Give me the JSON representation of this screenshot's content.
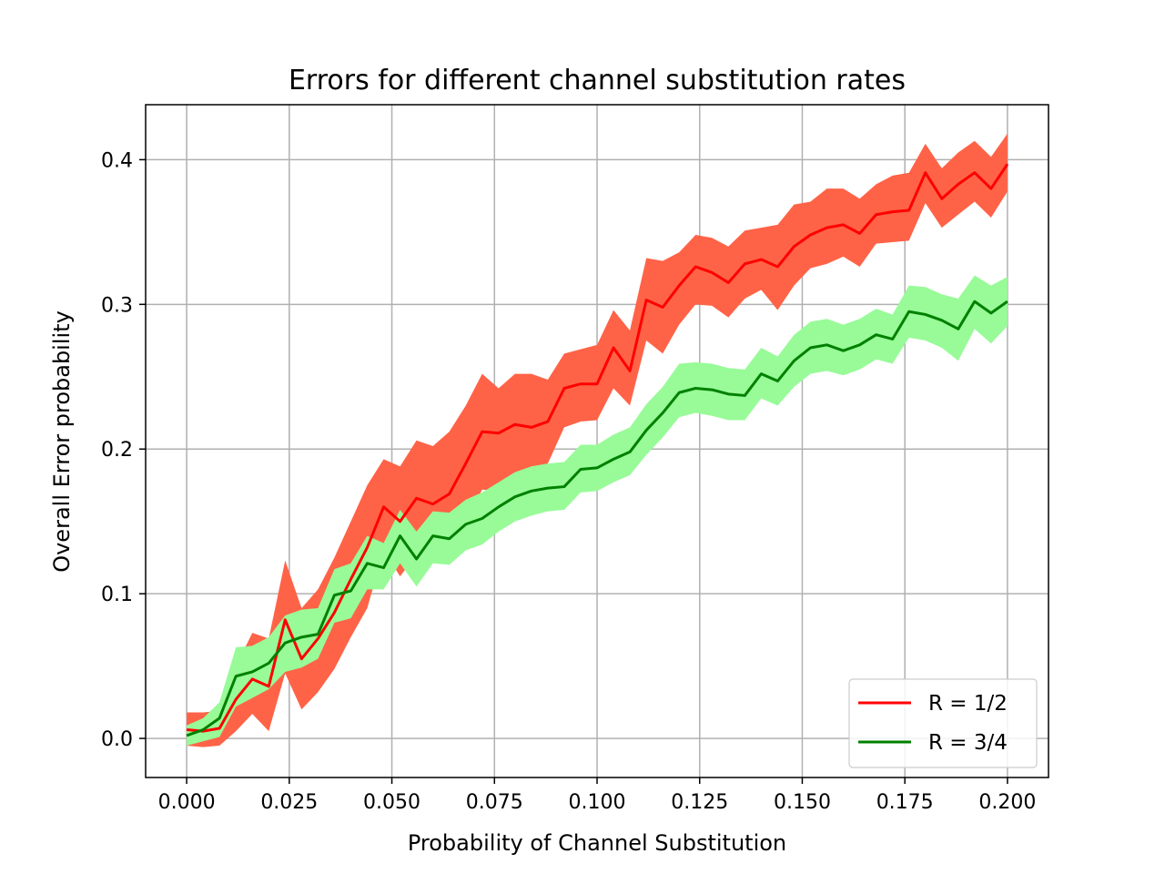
{
  "chart_data": {
    "type": "line",
    "title": "Errors for different channel substitution rates",
    "xlabel": "Probability of Channel Substitution",
    "ylabel": "Overall Error probability",
    "xlim": [
      -0.01,
      0.21
    ],
    "ylim": [
      -0.027,
      0.438
    ],
    "xticks": [
      0.0,
      0.025,
      0.05,
      0.075,
      0.1,
      0.125,
      0.15,
      0.175,
      0.2
    ],
    "xtick_labels": [
      "0.000",
      "0.025",
      "0.050",
      "0.075",
      "0.100",
      "0.125",
      "0.150",
      "0.175",
      "0.200"
    ],
    "yticks": [
      0.0,
      0.1,
      0.2,
      0.3,
      0.4
    ],
    "ytick_labels": [
      "0.0",
      "0.1",
      "0.2",
      "0.3",
      "0.4"
    ],
    "grid": true,
    "legend_position": "bottom-right",
    "x": [
      0.0,
      0.004,
      0.008,
      0.012,
      0.016,
      0.02,
      0.024,
      0.028,
      0.032,
      0.036,
      0.04,
      0.044,
      0.048,
      0.052,
      0.056,
      0.06,
      0.064,
      0.068,
      0.072,
      0.076,
      0.08,
      0.084,
      0.088,
      0.092,
      0.096,
      0.1,
      0.104,
      0.108,
      0.112,
      0.116,
      0.12,
      0.124,
      0.128,
      0.132,
      0.136,
      0.14,
      0.144,
      0.148,
      0.152,
      0.156,
      0.16,
      0.164,
      0.168,
      0.172,
      0.176,
      0.18,
      0.184,
      0.188,
      0.192,
      0.196,
      0.2
    ],
    "series": [
      {
        "name": "R = 1/2",
        "color": "#ff0000",
        "band_color": "#ff6347",
        "values": [
          0.006,
          0.005,
          0.007,
          0.027,
          0.041,
          0.036,
          0.082,
          0.055,
          0.069,
          0.087,
          0.11,
          0.132,
          0.16,
          0.15,
          0.166,
          0.162,
          0.169,
          0.19,
          0.212,
          0.211,
          0.217,
          0.215,
          0.219,
          0.242,
          0.245,
          0.245,
          0.27,
          0.254,
          0.303,
          0.298,
          0.313,
          0.326,
          0.322,
          0.315,
          0.328,
          0.331,
          0.326,
          0.34,
          0.348,
          0.353,
          0.355,
          0.349,
          0.362,
          0.364,
          0.365,
          0.391,
          0.373,
          0.383,
          0.391,
          0.38,
          0.397
        ],
        "lower": [
          -0.005,
          -0.006,
          -0.005,
          0.005,
          0.017,
          0.005,
          0.045,
          0.02,
          0.032,
          0.048,
          0.07,
          0.09,
          0.13,
          0.112,
          0.127,
          0.122,
          0.13,
          0.15,
          0.172,
          0.171,
          0.181,
          0.182,
          0.19,
          0.215,
          0.219,
          0.22,
          0.242,
          0.23,
          0.275,
          0.266,
          0.286,
          0.3,
          0.299,
          0.291,
          0.304,
          0.31,
          0.296,
          0.313,
          0.325,
          0.328,
          0.333,
          0.326,
          0.342,
          0.343,
          0.344,
          0.37,
          0.353,
          0.362,
          0.371,
          0.36,
          0.378
        ],
        "upper": [
          0.018,
          0.018,
          0.019,
          0.05,
          0.073,
          0.069,
          0.123,
          0.09,
          0.103,
          0.125,
          0.15,
          0.175,
          0.193,
          0.188,
          0.206,
          0.202,
          0.212,
          0.23,
          0.252,
          0.242,
          0.252,
          0.252,
          0.248,
          0.266,
          0.269,
          0.272,
          0.296,
          0.282,
          0.332,
          0.33,
          0.336,
          0.348,
          0.346,
          0.34,
          0.351,
          0.353,
          0.355,
          0.369,
          0.371,
          0.38,
          0.38,
          0.373,
          0.383,
          0.389,
          0.391,
          0.411,
          0.394,
          0.405,
          0.413,
          0.402,
          0.418
        ]
      },
      {
        "name": "R = 3/4",
        "color": "#008000",
        "band_color": "#98fb98",
        "values": [
          0.002,
          0.006,
          0.014,
          0.043,
          0.046,
          0.052,
          0.066,
          0.07,
          0.072,
          0.099,
          0.102,
          0.121,
          0.118,
          0.14,
          0.124,
          0.14,
          0.138,
          0.148,
          0.152,
          0.16,
          0.167,
          0.171,
          0.173,
          0.174,
          0.186,
          0.187,
          0.193,
          0.198,
          0.213,
          0.225,
          0.239,
          0.242,
          0.241,
          0.238,
          0.237,
          0.252,
          0.247,
          0.261,
          0.27,
          0.272,
          0.268,
          0.272,
          0.279,
          0.276,
          0.295,
          0.293,
          0.289,
          0.283,
          0.302,
          0.294,
          0.302
        ],
        "lower": [
          -0.005,
          -0.002,
          0.001,
          0.022,
          0.028,
          0.034,
          0.046,
          0.049,
          0.055,
          0.08,
          0.083,
          0.103,
          0.103,
          0.121,
          0.105,
          0.121,
          0.12,
          0.13,
          0.134,
          0.143,
          0.15,
          0.154,
          0.157,
          0.158,
          0.17,
          0.171,
          0.177,
          0.182,
          0.196,
          0.208,
          0.222,
          0.225,
          0.223,
          0.22,
          0.22,
          0.235,
          0.23,
          0.243,
          0.252,
          0.254,
          0.251,
          0.255,
          0.262,
          0.259,
          0.277,
          0.275,
          0.27,
          0.261,
          0.283,
          0.273,
          0.285
        ],
        "upper": [
          0.009,
          0.014,
          0.025,
          0.063,
          0.064,
          0.07,
          0.085,
          0.089,
          0.09,
          0.117,
          0.121,
          0.14,
          0.135,
          0.158,
          0.143,
          0.157,
          0.156,
          0.165,
          0.17,
          0.177,
          0.184,
          0.188,
          0.19,
          0.191,
          0.203,
          0.203,
          0.21,
          0.215,
          0.231,
          0.243,
          0.259,
          0.26,
          0.259,
          0.256,
          0.255,
          0.27,
          0.264,
          0.279,
          0.288,
          0.29,
          0.286,
          0.29,
          0.297,
          0.293,
          0.313,
          0.312,
          0.307,
          0.304,
          0.32,
          0.313,
          0.319
        ]
      }
    ]
  }
}
